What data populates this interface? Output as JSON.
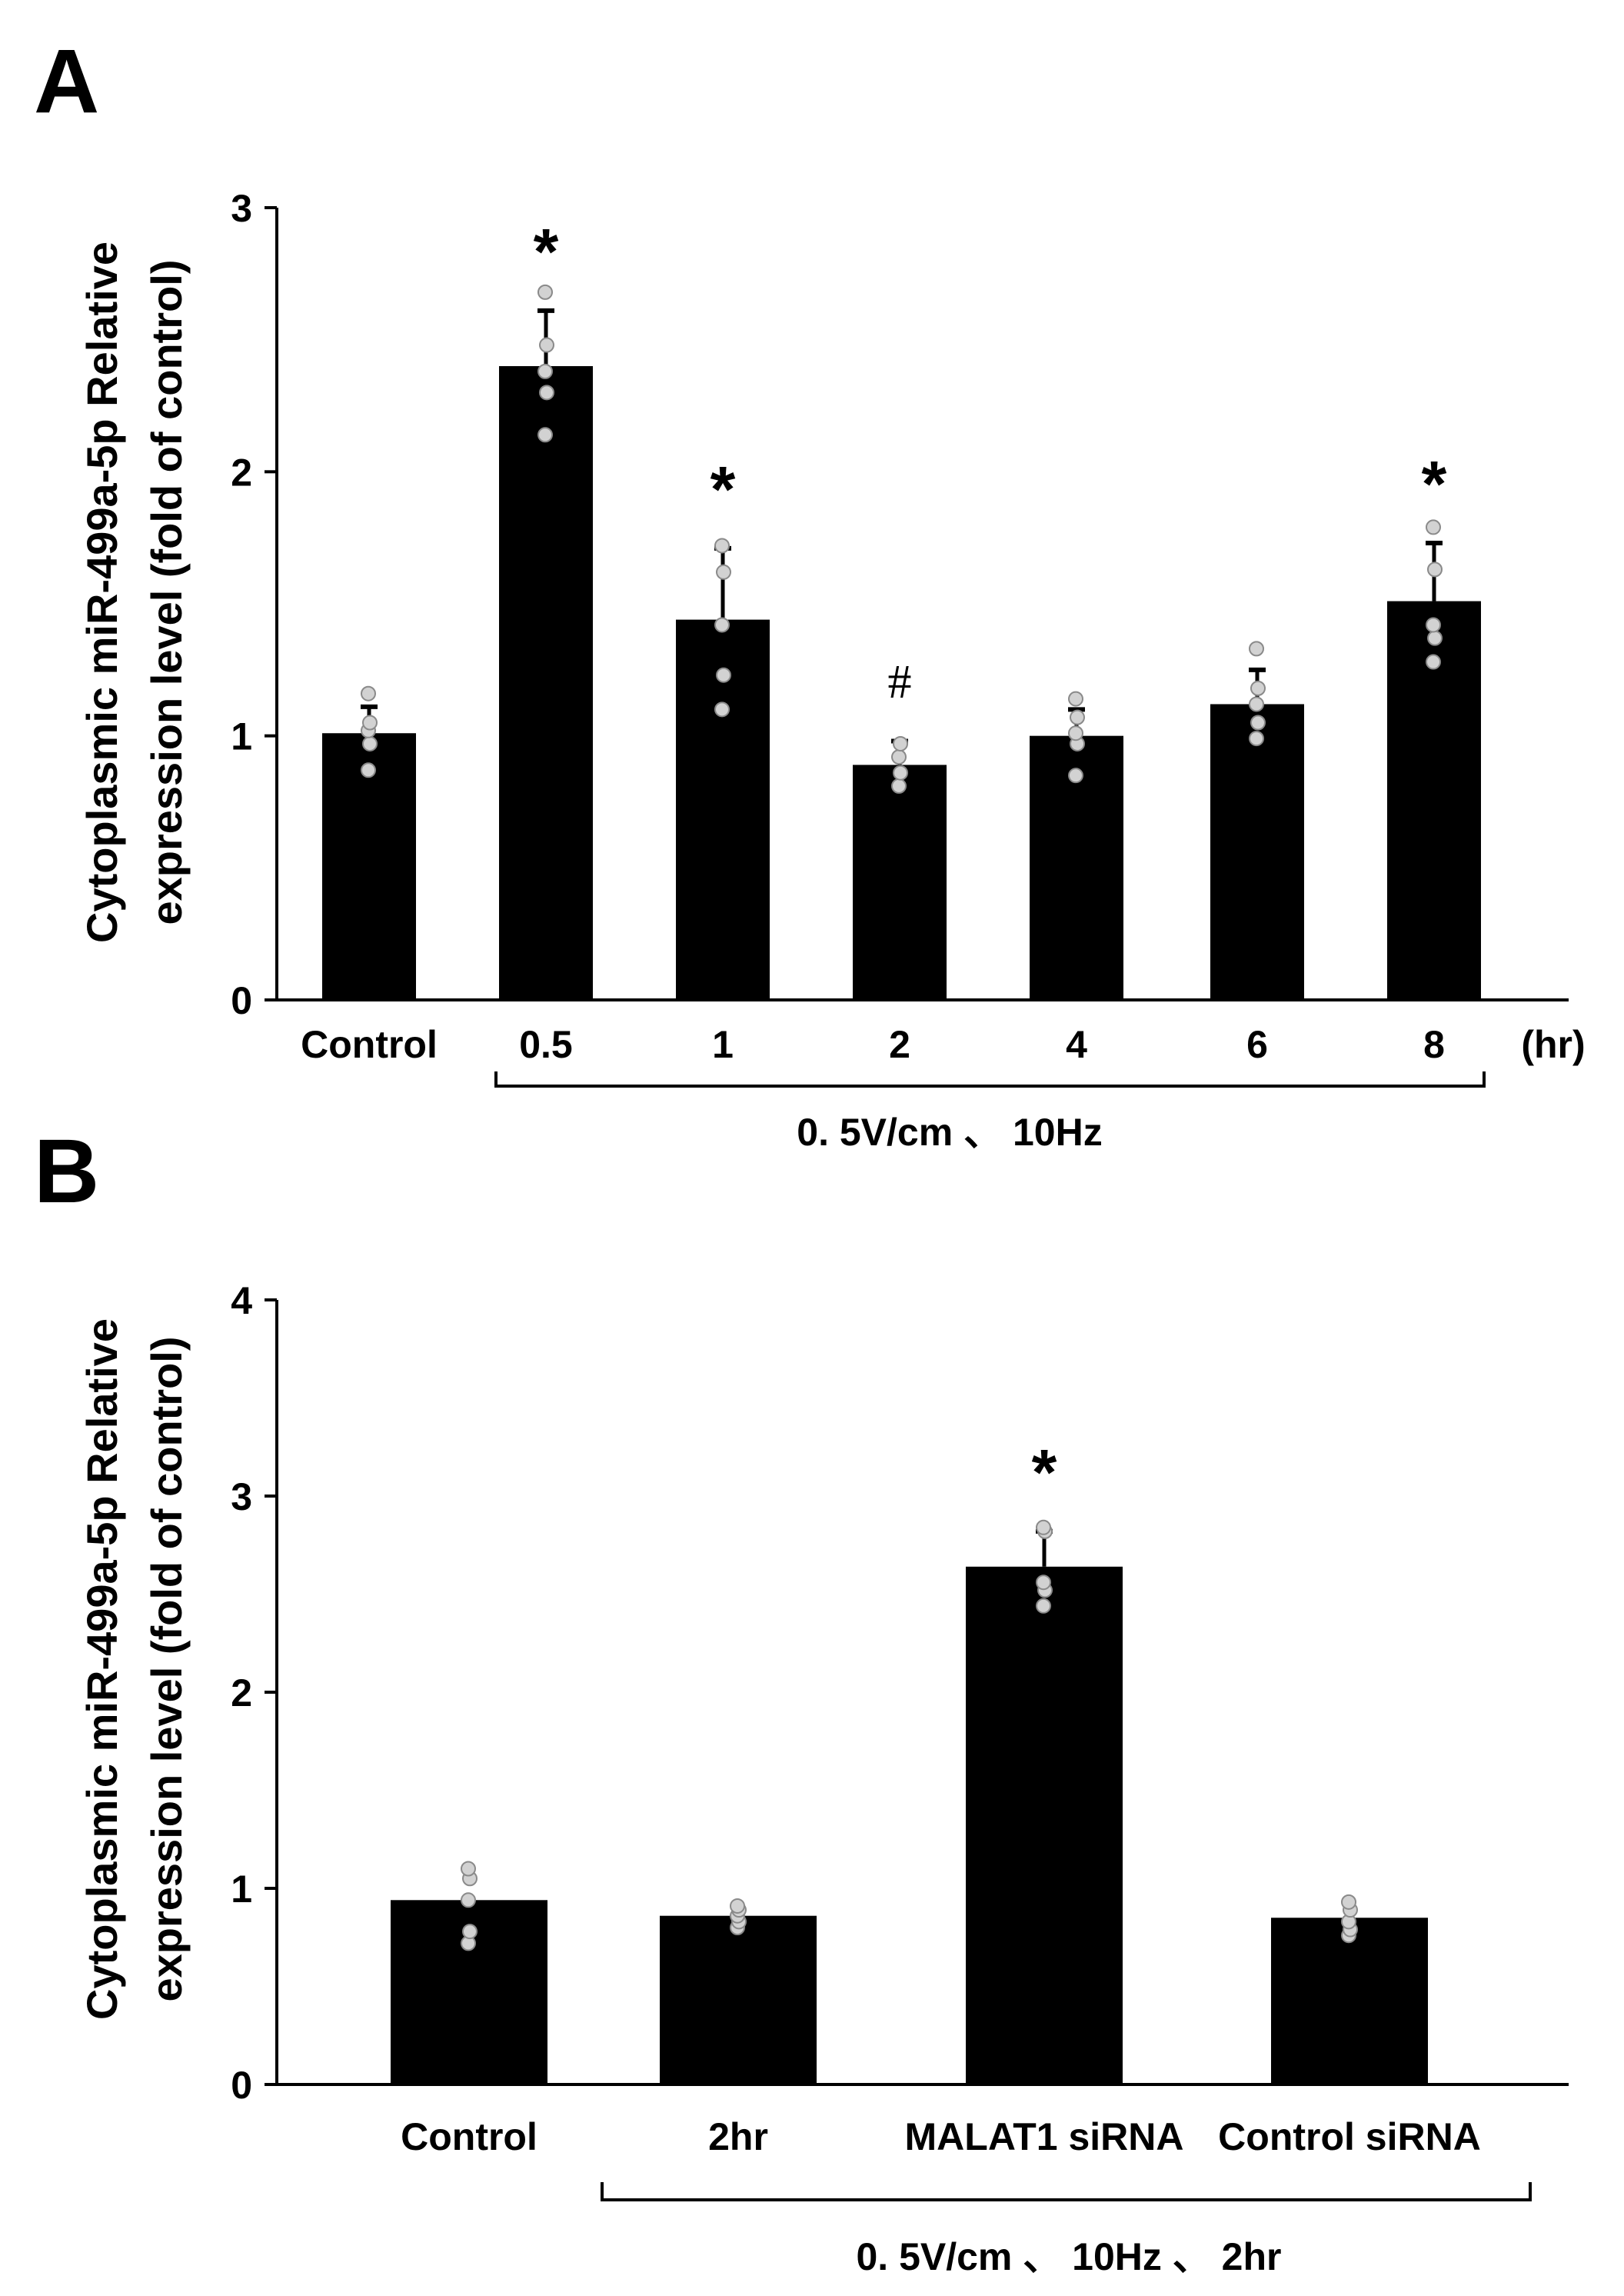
{
  "chart_data": [
    {
      "panel": "A",
      "type": "bar",
      "ylabel_line1": "Cytoplasmic miR-499a-5p Relative",
      "ylabel_line2": "expression level   (fold of control)",
      "ylim": [
        0,
        3
      ],
      "yticks": [
        0,
        1,
        2,
        3
      ],
      "categories": [
        "Control",
        "0.5",
        "1",
        "2",
        "4",
        "6",
        "8"
      ],
      "values": [
        1.01,
        2.4,
        1.44,
        0.89,
        1.0,
        1.12,
        1.51
      ],
      "errors": [
        0.1,
        0.21,
        0.27,
        0.09,
        0.1,
        0.13,
        0.22
      ],
      "points": [
        [
          0.87,
          0.97,
          1.02,
          1.05,
          1.16
        ],
        [
          2.14,
          2.3,
          2.38,
          2.48,
          2.68
        ],
        [
          1.1,
          1.23,
          1.42,
          1.62,
          1.72
        ],
        [
          0.81,
          0.86,
          0.92,
          0.97
        ],
        [
          0.85,
          0.97,
          1.01,
          1.07,
          1.14
        ],
        [
          0.99,
          1.05,
          1.12,
          1.18,
          1.33
        ],
        [
          1.28,
          1.37,
          1.42,
          1.63,
          1.79
        ]
      ],
      "significance": [
        "",
        "*",
        "*",
        "#",
        "",
        "",
        "*"
      ],
      "x_unit": "(hr)",
      "group_label": "0. 5V/cm  、 10Hz",
      "bracket_range": [
        1,
        6
      ],
      "grid": false
    },
    {
      "panel": "B",
      "type": "bar",
      "ylabel_line1": "Cytoplasmic  miR-499a-5p  Relative",
      "ylabel_line2": "expression level   (fold of control)",
      "ylim": [
        0,
        4
      ],
      "yticks": [
        0,
        1,
        2,
        3,
        4
      ],
      "categories": [
        "Control",
        "2hr",
        "MALAT1 siRNA",
        "Control siRNA"
      ],
      "values": [
        0.94,
        0.86,
        2.64,
        0.85
      ],
      "errors": [
        0,
        0,
        0.18,
        0
      ],
      "points": [
        [
          0.72,
          0.78,
          0.94,
          1.05,
          1.1
        ],
        [
          0.8,
          0.83,
          0.86,
          0.89,
          0.91
        ],
        [
          2.44,
          2.52,
          2.56,
          2.82,
          2.84
        ],
        [
          0.76,
          0.79,
          0.83,
          0.89,
          0.93
        ]
      ],
      "significance": [
        "",
        "",
        "*",
        ""
      ],
      "group_label": "0. 5V/cm  、 10Hz  、 2hr",
      "bracket_range": [
        1,
        3
      ],
      "grid": false
    }
  ]
}
